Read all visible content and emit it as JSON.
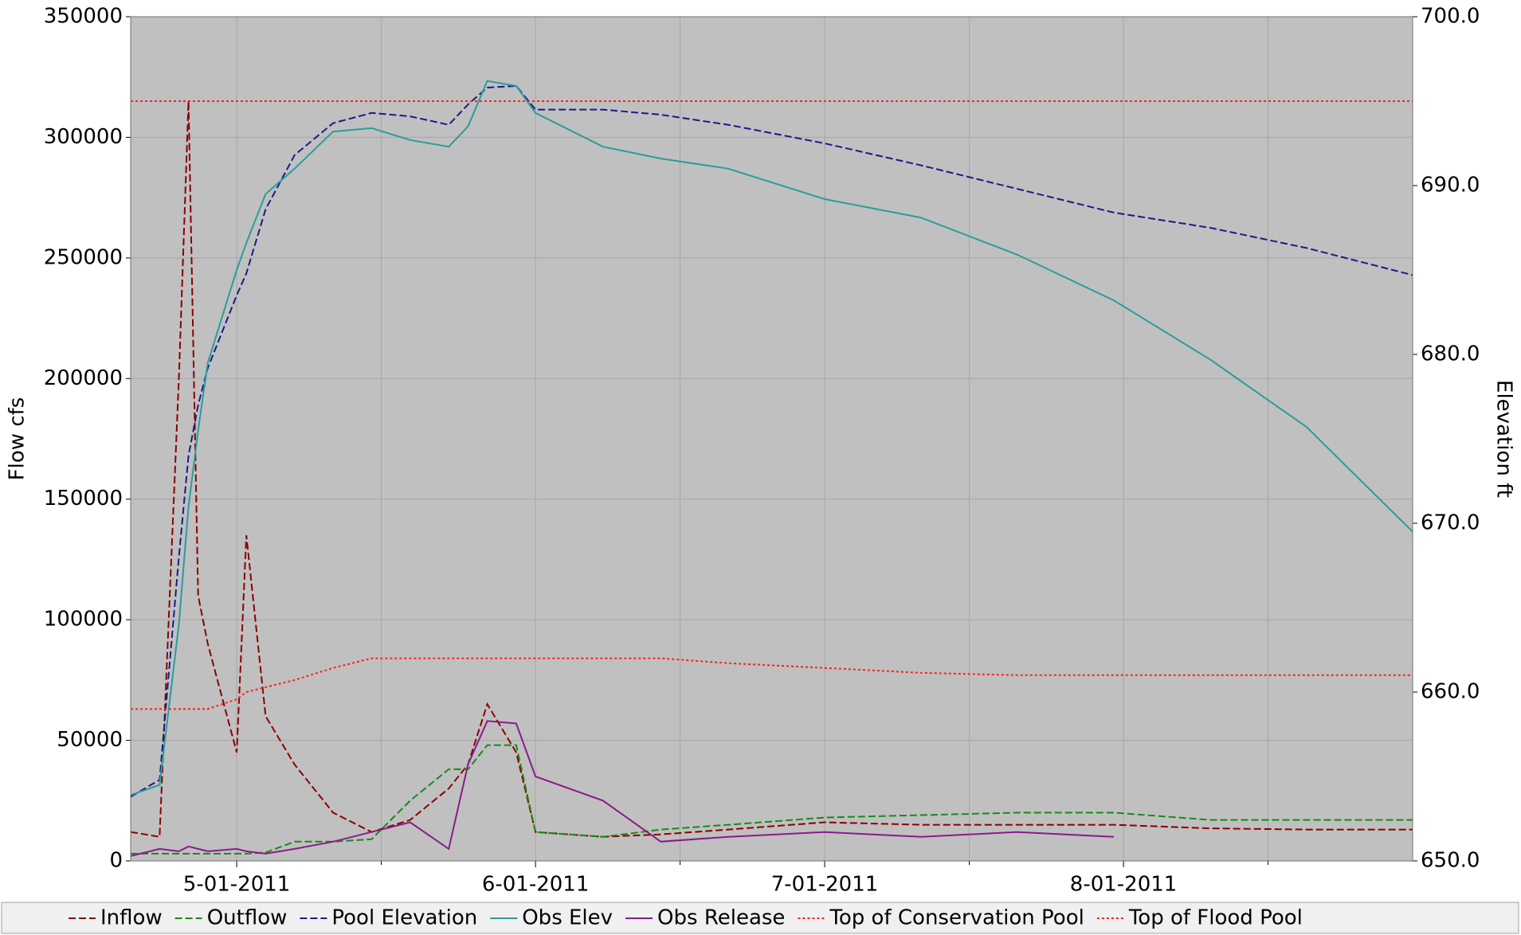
{
  "chart_data": {
    "type": "line",
    "ylabel": "Flow cfs",
    "y2label": "Elevation ft",
    "x": [
      "2011-04-20",
      "2011-04-23",
      "2011-04-25",
      "2011-04-26",
      "2011-04-27",
      "2011-04-28",
      "2011-05-01",
      "2011-05-02",
      "2011-05-04",
      "2011-05-07",
      "2011-05-11",
      "2011-05-15",
      "2011-05-19",
      "2011-05-23",
      "2011-05-25",
      "2011-05-27",
      "2011-05-30",
      "2011-06-01",
      "2011-06-08",
      "2011-06-14",
      "2011-06-21",
      "2011-07-01",
      "2011-07-11",
      "2011-07-21",
      "2011-07-31",
      "2011-08-10",
      "2011-08-20",
      "2011-08-31"
    ],
    "xlim": [
      "2011-04-20",
      "2011-08-31"
    ],
    "xticks": [
      {
        "value": "2011-05-01",
        "label": "5-01-2011"
      },
      {
        "value": "2011-06-01",
        "label": "6-01-2011"
      },
      {
        "value": "2011-07-01",
        "label": "7-01-2011"
      },
      {
        "value": "2011-08-01",
        "label": "8-01-2011"
      }
    ],
    "xminorticks": [
      "2011-05-16",
      "2011-06-16",
      "2011-07-16",
      "2011-08-16"
    ],
    "ylim": [
      0,
      350000
    ],
    "yticks": [
      0,
      50000,
      100000,
      150000,
      200000,
      250000,
      300000,
      350000
    ],
    "y2lim": [
      650,
      700
    ],
    "y2ticks": [
      {
        "value": 650,
        "label": "650.0"
      },
      {
        "value": 660,
        "label": "660.0"
      },
      {
        "value": 670,
        "label": "670.0"
      },
      {
        "value": 680,
        "label": "680.0"
      },
      {
        "value": 690,
        "label": "690.0"
      },
      {
        "value": 700,
        "label": "700.0"
      }
    ],
    "grid": true,
    "legend": "bottom",
    "series": [
      {
        "name": "Inflow",
        "color": "#8b0000",
        "dash": "dashed",
        "values": [
          12000,
          10000,
          200000,
          315000,
          110000,
          90000,
          45000,
          135000,
          60000,
          40000,
          20000,
          12000,
          17000,
          30000,
          40000,
          65000,
          45000,
          12000,
          10000,
          11000,
          13000,
          16000,
          15000,
          15000,
          15000,
          13500,
          13000,
          13000
        ]
      },
      {
        "name": "Outflow",
        "color": "#168c16",
        "dash": "dashed",
        "values": [
          3000,
          3000,
          3000,
          3000,
          3000,
          3000,
          3000,
          3000,
          3500,
          8000,
          8000,
          9000,
          25000,
          38000,
          38000,
          48000,
          48000,
          12000,
          10000,
          13000,
          15000,
          18000,
          19000,
          20000,
          20000,
          17000,
          17000,
          17000
        ]
      },
      {
        "name": "Pool Elevation",
        "color": "#1a1a8c",
        "dash": "dashed",
        "axis": "y2",
        "values": [
          653.8,
          654.8,
          668,
          674,
          677,
          679.2,
          683.5,
          684.8,
          688.6,
          691.8,
          693.7,
          694.3,
          694.1,
          693.6,
          694.8,
          695.8,
          695.9,
          694.5,
          694.5,
          694.2,
          693.6,
          692.5,
          691.2,
          689.8,
          688.4,
          687.5,
          686.3,
          684.7
        ]
      },
      {
        "name": "Obs Elev",
        "color": "#2a9d9a",
        "dash": "solid",
        "axis": "y2",
        "values": [
          653.9,
          654.5,
          664,
          671,
          675.5,
          679.5,
          685,
          686.6,
          689.5,
          691,
          693.2,
          693.4,
          692.7,
          692.3,
          693.5,
          696.2,
          695.9,
          694.3,
          692.3,
          691.6,
          691,
          689.2,
          688.1,
          685.9,
          683.2,
          679.7,
          675.7,
          669.5
        ]
      },
      {
        "name": "Obs Release",
        "color": "#8b1a8b",
        "dash": "solid",
        "values": [
          2000,
          5000,
          4000,
          6000,
          5000,
          4000,
          5000,
          4000,
          3000,
          5000,
          8000,
          12000,
          16000,
          5000,
          40000,
          58000,
          57000,
          35000,
          25000,
          8000,
          10000,
          12000,
          10000,
          12000,
          10000,
          null,
          null,
          null
        ]
      },
      {
        "name": "Top of Conservation Pool",
        "color": "#ff2020",
        "dash": "dotted",
        "values": [
          63000,
          63000,
          63000,
          63000,
          63000,
          63000,
          67000,
          70000,
          72000,
          75000,
          80000,
          84000,
          84000,
          84000,
          84000,
          84000,
          84000,
          84000,
          84000,
          84000,
          82000,
          80000,
          78000,
          77000,
          77000,
          77000,
          77000,
          77000
        ]
      },
      {
        "name": "Top of Flood Pool",
        "color": "#ff2020",
        "dash": "dotted",
        "values": [
          315000,
          315000,
          315000,
          315000,
          315000,
          315000,
          315000,
          315000,
          315000,
          315000,
          315000,
          315000,
          315000,
          315000,
          315000,
          315000,
          315000,
          315000,
          315000,
          315000,
          315000,
          315000,
          315000,
          315000,
          315000,
          315000,
          315000,
          315000
        ]
      }
    ]
  }
}
